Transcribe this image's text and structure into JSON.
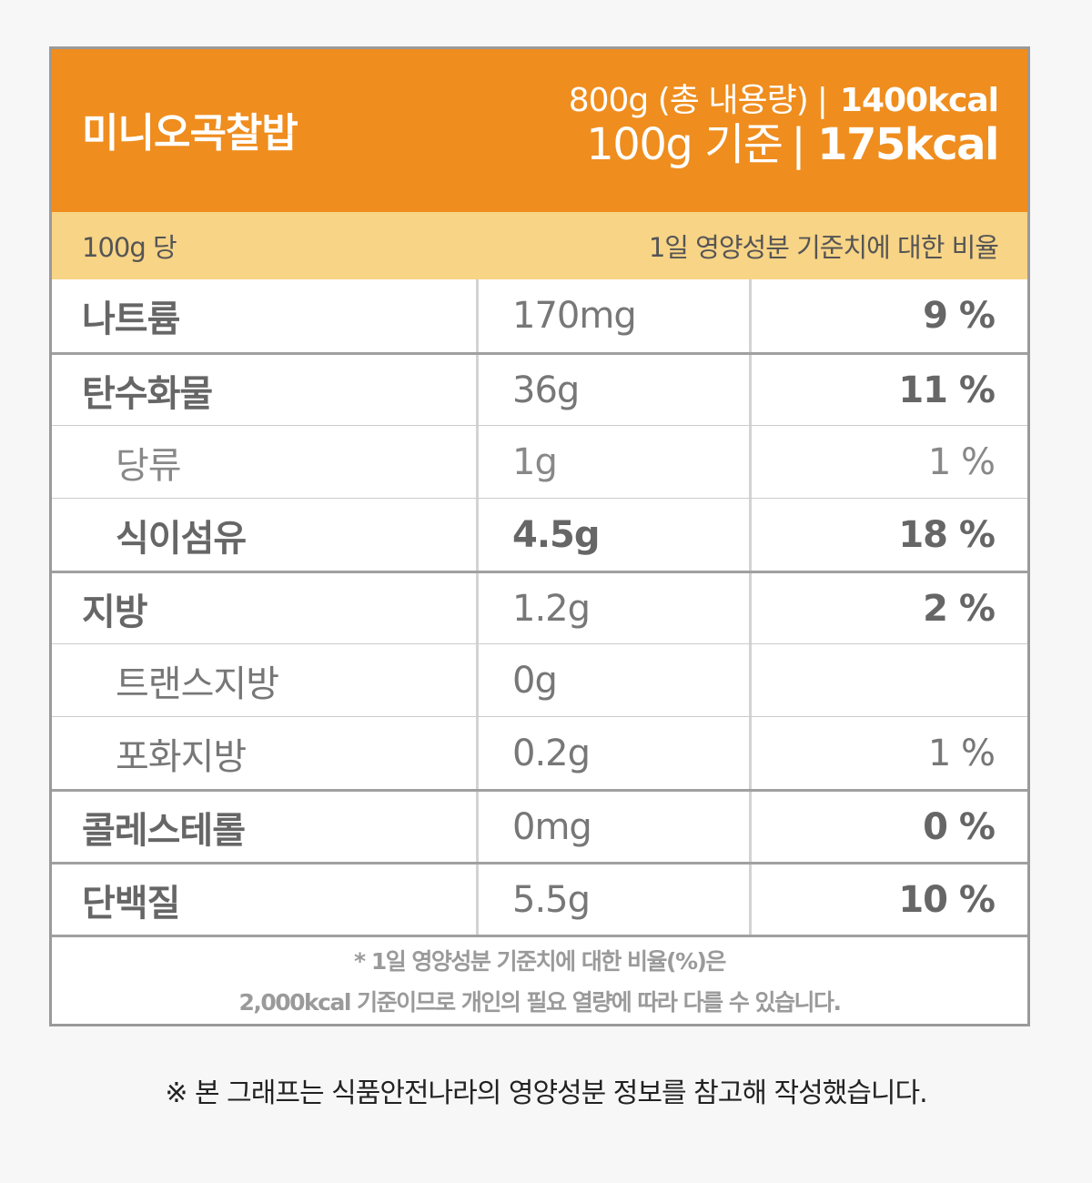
{
  "header": {
    "title": "미니오곡찰밥",
    "total_label": "800g (총 내용량)",
    "total_sep": "|",
    "total_kcal": "1400kcal",
    "per_label": "100g 기준",
    "per_sep": "|",
    "per_kcal": "175kcal",
    "colors": {
      "header_bg": "#ef8d1e",
      "subheader_bg": "#f8d486",
      "border": "#9a9a9a"
    }
  },
  "subheader": {
    "left": "100g 당",
    "right": "1일 영양성분 기준치에 대한 비율"
  },
  "rows": [
    {
      "name": "나트륨",
      "amount": "170mg",
      "pct": "9 %",
      "level": "main"
    },
    {
      "name": "탄수화물",
      "amount": "36g",
      "pct": "11 %",
      "level": "main"
    },
    {
      "name": "당류",
      "amount": "1g",
      "pct": "1 %",
      "level": "sub"
    },
    {
      "name": "식이섬유",
      "amount": "4.5g",
      "pct": "18 %",
      "level": "sub-bold"
    },
    {
      "name": "지방",
      "amount": "1.2g",
      "pct": "2 %",
      "level": "main"
    },
    {
      "name": "트랜스지방",
      "amount": "0g",
      "pct": "",
      "level": "sub"
    },
    {
      "name": "포화지방",
      "amount": "0.2g",
      "pct": "1 %",
      "level": "sub"
    },
    {
      "name": "콜레스테롤",
      "amount": "0mg",
      "pct": "0 %",
      "level": "main"
    },
    {
      "name": "단백질",
      "amount": "5.5g",
      "pct": "10 %",
      "level": "main"
    }
  ],
  "footnote": {
    "line1": "* 1일 영양성분 기준치에 대한 비율(%)은",
    "line2": "2,000kcal 기준이므로 개인의 필요 열량에 따라 다를 수 있습니다."
  },
  "source_note": "※ 본 그래프는 식품안전나라의 영양성분 정보를 참고해 작성했습니다."
}
